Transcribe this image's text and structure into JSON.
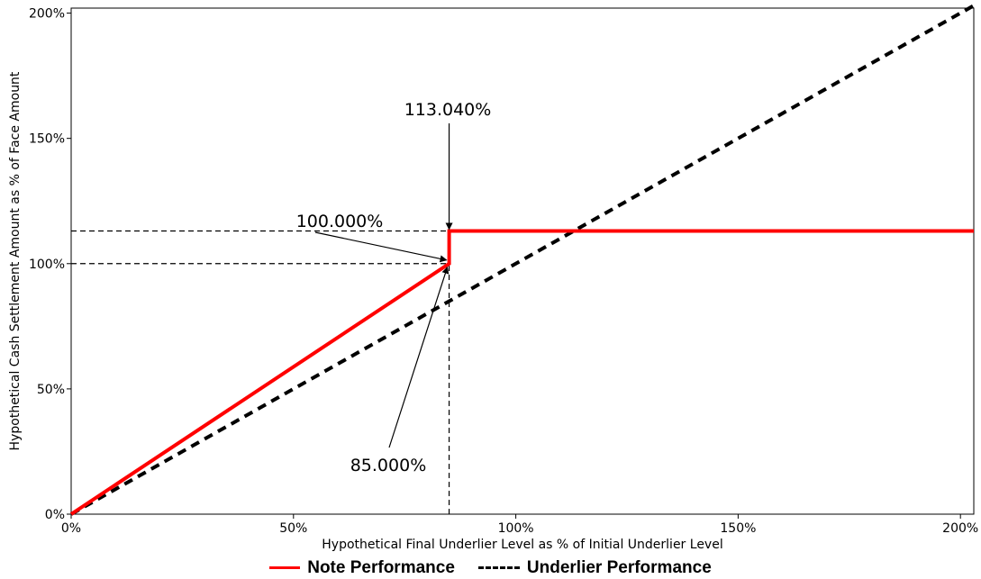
{
  "chart_data": {
    "type": "line",
    "title": "",
    "xlabel": "Hypothetical Final Underlier Level as % of Initial Underlier Level",
    "ylabel": "Hypothetical Cash Settlement Amount as % of Face Amount",
    "xlim": [
      0,
      203
    ],
    "ylim": [
      0,
      202
    ],
    "xticks": [
      0,
      50,
      100,
      150,
      200
    ],
    "xtick_labels": [
      "0%",
      "50%",
      "100%",
      "150%",
      "200%"
    ],
    "yticks": [
      0,
      50,
      100,
      150,
      200
    ],
    "ytick_labels": [
      "0%",
      "50%",
      "100%",
      "150%",
      "200%"
    ],
    "grid": false,
    "legend_position": "bottom-center",
    "series": [
      {
        "name": "Note Performance",
        "color": "#ff0000",
        "style": "solid",
        "x": [
          0,
          85,
          85,
          203
        ],
        "y": [
          0,
          100,
          113.04,
          113.04
        ]
      },
      {
        "name": "Underlier Performance",
        "color": "#000000",
        "style": "dashed",
        "x": [
          0,
          203
        ],
        "y": [
          0,
          203
        ]
      }
    ],
    "reference_lines": [
      {
        "orientation": "horizontal",
        "value": 113.04,
        "from": 0,
        "to": 85
      },
      {
        "orientation": "horizontal",
        "value": 100,
        "from": 0,
        "to": 85
      },
      {
        "orientation": "vertical",
        "value": 85,
        "from": 0,
        "to": 100
      }
    ],
    "annotations": [
      {
        "text": "113.040%",
        "x": 85,
        "y": 113.04
      },
      {
        "text": "100.000%",
        "x": 85,
        "y": 100
      },
      {
        "text": "85.000%",
        "x": 85,
        "y": 100
      }
    ]
  }
}
